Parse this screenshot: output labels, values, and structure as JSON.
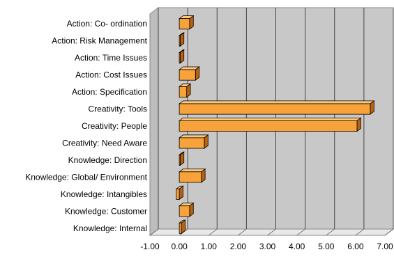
{
  "chart_data": {
    "type": "bar",
    "orientation": "horizontal",
    "style": "3d",
    "categories": [
      "Action: Co- ordination",
      "Action: Risk Management",
      "Action: Time Issues",
      "Action: Cost Issues",
      "Action: Specification",
      "Creativity: Tools",
      "Creativity: People",
      "Creativity: Need Aware",
      "Knowledge: Direction",
      "Knowledge: Global/ Environment",
      "Knowledge: Intangibles",
      "Knowledge: Customer",
      "Knowledge: Internal"
    ],
    "values": [
      0.35,
      0.0,
      0.0,
      0.55,
      0.25,
      6.5,
      6.05,
      0.85,
      0.0,
      0.75,
      -0.1,
      0.35,
      0.07
    ],
    "xlim": [
      -1,
      7
    ],
    "xticks": [
      "-1.00",
      "0.00",
      "1.00",
      "2.00",
      "3.00",
      "4.00",
      "5.00",
      "6.00",
      "7.00"
    ],
    "grid": true,
    "colors": {
      "bar_front": "#f7a23a",
      "bar_top": "#ffc97a",
      "bar_side": "#b8620f",
      "bar_edge": "#000000",
      "plot_back": "#c8c8c8",
      "plot_floor": "#e8e8e8",
      "plot_side": "#bdbdbd",
      "gridline": "#444444"
    }
  }
}
